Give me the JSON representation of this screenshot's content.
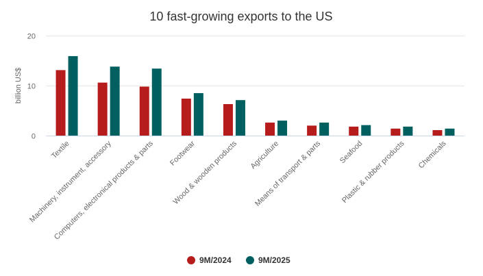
{
  "chart_data": {
    "type": "bar",
    "title": "10 fast-growing exports to the US",
    "xlabel": "",
    "ylabel": "billion US$",
    "ylim": [
      0,
      20
    ],
    "yticks": [
      0,
      10,
      20
    ],
    "grid": true,
    "legend_position": "bottom",
    "categories": [
      "Textile",
      "Machinery, instrument, accessory",
      "Computers, electronical products & parts",
      "Footwear",
      "Wood & wooden products",
      "Agriculture",
      "Means of transport & parts",
      "Seafood",
      "Plastic & rubber products",
      "Chemicals"
    ],
    "series": [
      {
        "name": "9M/2024",
        "color": "#b71c1c",
        "values": [
          13.1,
          10.6,
          9.8,
          7.4,
          6.3,
          2.6,
          2.0,
          1.8,
          1.4,
          1.1
        ]
      },
      {
        "name": "9M/2025",
        "color": "#00605f",
        "values": [
          15.9,
          13.8,
          13.4,
          8.5,
          7.1,
          3.0,
          2.6,
          2.1,
          1.8,
          1.4
        ]
      }
    ]
  }
}
